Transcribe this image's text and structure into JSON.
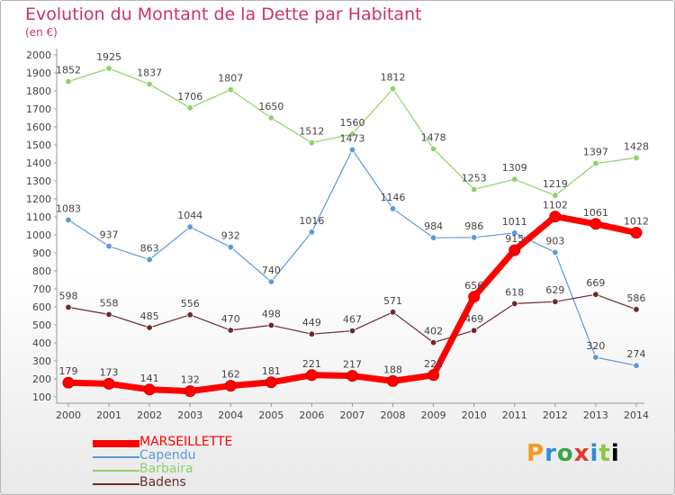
{
  "chart_data": {
    "type": "line",
    "title": "Evolution du Montant de la Dette par Habitant",
    "subtitle": "(en €)",
    "x": [
      "2000",
      "2001",
      "2002",
      "2003",
      "2004",
      "2005",
      "2006",
      "2007",
      "2008",
      "2009",
      "2010",
      "2011",
      "2012",
      "2013",
      "2014"
    ],
    "ylim": [
      100,
      2000
    ],
    "yticks": [
      100,
      200,
      300,
      400,
      500,
      600,
      700,
      800,
      900,
      1000,
      1100,
      1200,
      1300,
      1400,
      1500,
      1600,
      1700,
      1800,
      1900,
      2000
    ],
    "grid": false,
    "legend_position": "bottom-left",
    "series": [
      {
        "name": "MARSEILLETTE",
        "color": "#ff0000",
        "values": [
          179,
          173,
          141,
          132,
          162,
          181,
          221,
          217,
          188,
          221,
          656,
          915,
          1102,
          1061,
          1012
        ]
      },
      {
        "name": "Capendu",
        "color": "#5b9bd5",
        "values": [
          1083,
          937,
          863,
          1044,
          932,
          740,
          1016,
          1473,
          1146,
          984,
          986,
          1011,
          903,
          320,
          274
        ]
      },
      {
        "name": "Barbaira",
        "color": "#8fd16a",
        "values": [
          1852,
          1925,
          1837,
          1706,
          1807,
          1650,
          1512,
          1560,
          1812,
          1478,
          1253,
          1309,
          1219,
          1397,
          1428
        ]
      },
      {
        "name": "Badens",
        "color": "#6b2b2b",
        "values": [
          598,
          558,
          485,
          556,
          470,
          498,
          449,
          467,
          571,
          402,
          469,
          618,
          629,
          669,
          586
        ]
      }
    ]
  },
  "logo_text": [
    "P",
    "r",
    "o",
    "x",
    "i",
    "t",
    "i"
  ]
}
